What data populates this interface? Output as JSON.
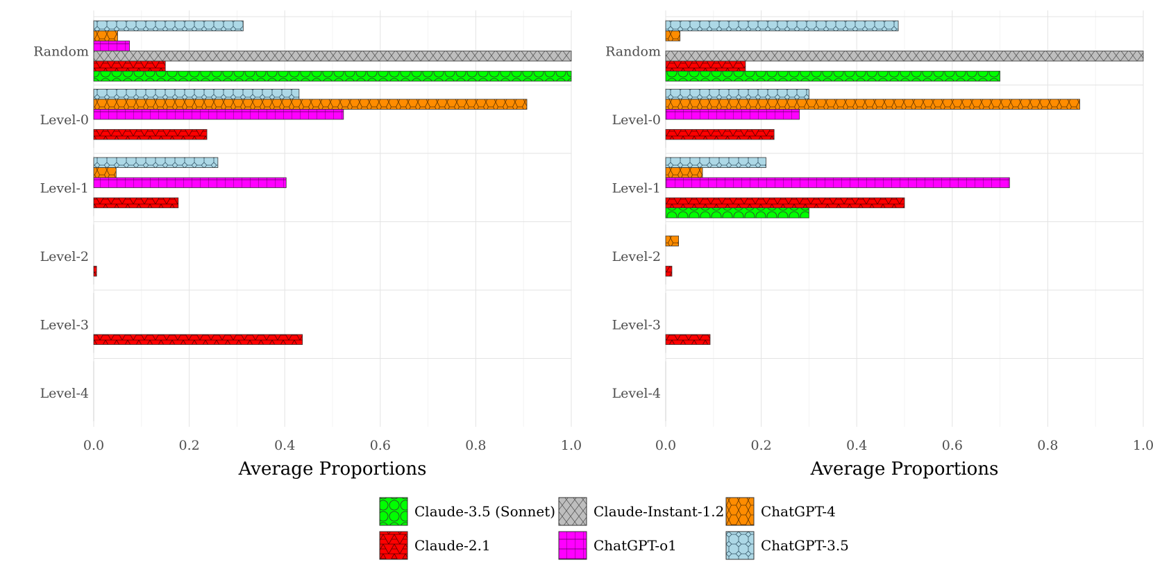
{
  "chart_data": [
    {
      "type": "bar",
      "orientation": "horizontal",
      "panel": "left",
      "categories": [
        "Random",
        "Level-0",
        "Level-1",
        "Level-2",
        "Level-3",
        "Level-4"
      ],
      "xlabel": "Average Proportions",
      "xlim": [
        0.0,
        1.0
      ],
      "xticks": [
        "0.0",
        "0.2",
        "0.4",
        "0.6",
        "0.8",
        "1.0"
      ],
      "grid": true,
      "series": [
        {
          "name": "ChatGPT-3.5",
          "values": [
            0.313,
            0.43,
            0.26,
            0,
            0,
            0
          ]
        },
        {
          "name": "ChatGPT-4",
          "values": [
            0.05,
            0.907,
            0.047,
            0,
            0,
            0
          ]
        },
        {
          "name": "ChatGPT-o1",
          "values": [
            0.075,
            0.523,
            0.403,
            0,
            0,
            0
          ]
        },
        {
          "name": "Claude-Instant-1.2",
          "values": [
            1.0,
            0,
            0,
            0,
            0,
            0
          ]
        },
        {
          "name": "Claude-2.1",
          "values": [
            0.15,
            0.237,
            0.177,
            0.006,
            0.437,
            0
          ]
        },
        {
          "name": "Claude-3.5 (Sonnet)",
          "values": [
            1.0,
            0,
            0,
            0,
            0,
            0
          ]
        }
      ]
    },
    {
      "type": "bar",
      "orientation": "horizontal",
      "panel": "right",
      "categories": [
        "Random",
        "Level-0",
        "Level-1",
        "Level-2",
        "Level-3",
        "Level-4"
      ],
      "xlabel": "Average Proportions",
      "xlim": [
        0.0,
        1.0
      ],
      "xticks": [
        "0.0",
        "0.2",
        "0.4",
        "0.6",
        "0.8",
        "1.0"
      ],
      "grid": true,
      "series": [
        {
          "name": "ChatGPT-3.5",
          "values": [
            0.487,
            0.3,
            0.21,
            0,
            0,
            0
          ]
        },
        {
          "name": "ChatGPT-4",
          "values": [
            0.03,
            0.867,
            0.077,
            0.027,
            0,
            0
          ]
        },
        {
          "name": "ChatGPT-o1",
          "values": [
            0,
            0.28,
            0.72,
            0,
            0,
            0
          ]
        },
        {
          "name": "Claude-Instant-1.2",
          "values": [
            1.0,
            0,
            0,
            0,
            0,
            0
          ]
        },
        {
          "name": "Claude-2.1",
          "values": [
            0.167,
            0.227,
            0.5,
            0.013,
            0.093,
            0
          ]
        },
        {
          "name": "Claude-3.5 (Sonnet)",
          "values": [
            0.7,
            0,
            0.3,
            0,
            0,
            0
          ]
        }
      ]
    }
  ],
  "legend": {
    "position": "bottom",
    "items": [
      {
        "name": "Claude-3.5 (Sonnet)",
        "color": "#00ff00",
        "pattern": "circles"
      },
      {
        "name": "Claude-Instant-1.2",
        "color": "#bebebe",
        "pattern": "crosshatch"
      },
      {
        "name": "ChatGPT-4",
        "color": "#ff8c00",
        "pattern": "hexagons"
      },
      {
        "name": "Claude-2.1",
        "color": "#ff0000",
        "pattern": "triangles"
      },
      {
        "name": "ChatGPT-o1",
        "color": "#ff00ff",
        "pattern": "grid"
      },
      {
        "name": "ChatGPT-3.5",
        "color": "#add8e6",
        "pattern": "octagons"
      }
    ]
  }
}
